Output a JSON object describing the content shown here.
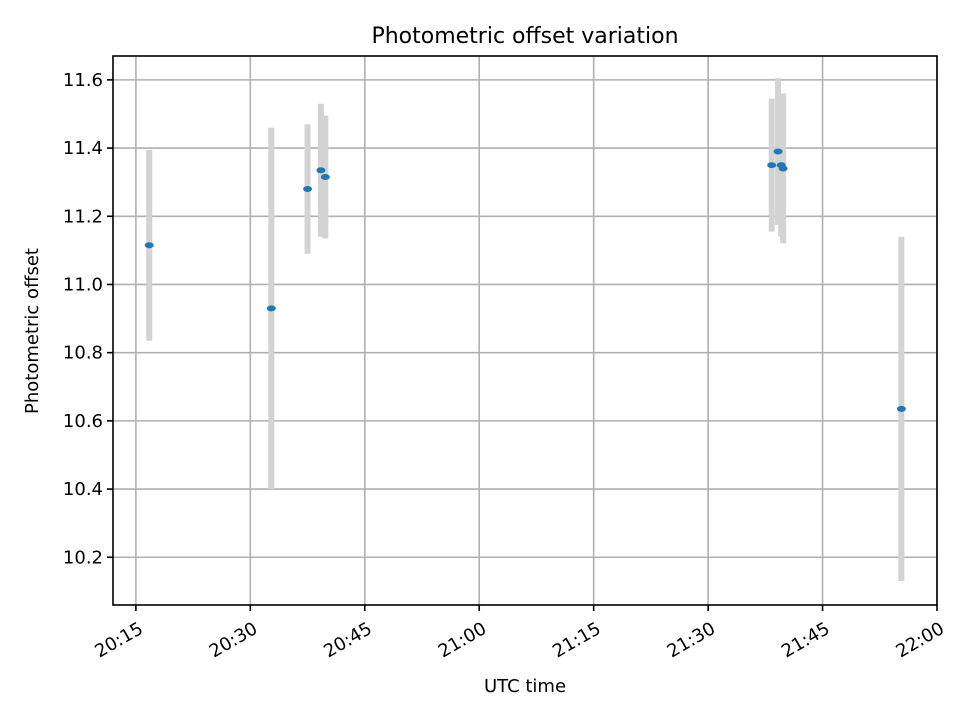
{
  "chart_data": {
    "type": "scatter",
    "title": "Photometric offset variation",
    "xlabel": "UTC time",
    "ylabel": "Photometric offset",
    "x_ticks": [
      "20:15",
      "20:30",
      "20:45",
      "21:00",
      "21:15",
      "21:30",
      "21:45",
      "22:00"
    ],
    "x_tick_minutes": [
      1215,
      1230,
      1245,
      1260,
      1275,
      1290,
      1305,
      1320
    ],
    "xlim": [
      "20:12",
      "22:00"
    ],
    "y_ticks": [
      "10.2",
      "10.4",
      "10.6",
      "10.8",
      "11.0",
      "11.2",
      "11.4",
      "11.6"
    ],
    "y_tick_values": [
      10.2,
      10.4,
      10.6,
      10.8,
      11.0,
      11.2,
      11.4,
      11.6
    ],
    "ylim": [
      10.06,
      11.67
    ],
    "grid": true,
    "point_color": "#1f77b4",
    "errorbar_color": "#d3d3d3",
    "points": [
      {
        "time": "20:16:45",
        "y": 11.115,
        "err": 0.28
      },
      {
        "time": "20:32:45",
        "y": 10.93,
        "err": 0.53
      },
      {
        "time": "20:37:30",
        "y": 11.28,
        "err": 0.19
      },
      {
        "time": "20:39:15",
        "y": 11.335,
        "err": 0.195
      },
      {
        "time": "20:39:50",
        "y": 11.315,
        "err": 0.18
      },
      {
        "time": "21:38:20",
        "y": 11.35,
        "err": 0.195
      },
      {
        "time": "21:39:10",
        "y": 11.39,
        "err": 0.215
      },
      {
        "time": "21:39:35",
        "y": 11.35,
        "err": 0.21
      },
      {
        "time": "21:39:50",
        "y": 11.34,
        "err": 0.22
      },
      {
        "time": "21:55:20",
        "y": 10.635,
        "err": 0.505
      }
    ]
  }
}
